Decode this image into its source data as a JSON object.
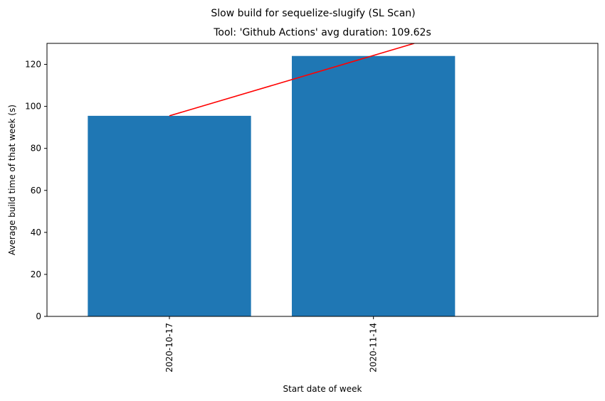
{
  "chart_data": {
    "type": "bar",
    "title": "Slow build for sequelize-slugify (SL Scan)",
    "subtitle": "Tool: 'Github Actions' avg duration: 109.62s",
    "xlabel": "Start date of week",
    "ylabel": "Average build time of that week (s)",
    "categories": [
      "2020-10-17",
      "2020-11-14"
    ],
    "values": [
      95.5,
      124.0
    ],
    "ylim": [
      0,
      130
    ],
    "yticks": [
      0,
      20,
      40,
      60,
      80,
      100,
      120
    ],
    "xlim": [
      -0.6,
      2.1
    ],
    "bar_width": 0.8,
    "bar_color": "#1f77b4",
    "grid": false,
    "trend_line": {
      "color": "#ff0000",
      "x": [
        0,
        1.2
      ],
      "y": [
        95.5,
        130
      ]
    }
  }
}
